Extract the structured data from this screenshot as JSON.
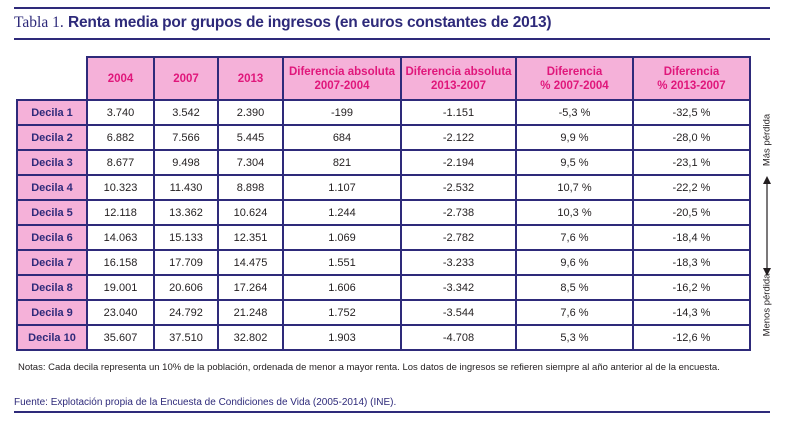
{
  "title": {
    "prefix": "Tabla 1.",
    "main": "Renta media por grupos de ingresos (en euros constantes de 2013)"
  },
  "table": {
    "columns": [
      {
        "line1": "2004",
        "line2": ""
      },
      {
        "line1": "2007",
        "line2": ""
      },
      {
        "line1": "2013",
        "line2": ""
      },
      {
        "line1": "Diferencia absoluta",
        "line2": "2007-2004"
      },
      {
        "line1": "Diferencia absoluta",
        "line2": "2013-2007"
      },
      {
        "line1": "Diferencia",
        "line2": "% 2007-2004"
      },
      {
        "line1": "Diferencia",
        "line2": "% 2013-2007"
      }
    ],
    "rows": [
      {
        "label": "Decila 1",
        "values": [
          "3.740",
          "3.542",
          "2.390",
          "-199",
          "-1.151",
          "-5,3 %",
          "-32,5 %"
        ]
      },
      {
        "label": "Decila 2",
        "values": [
          "6.882",
          "7.566",
          "5.445",
          "684",
          "-2.122",
          "9,9 %",
          "-28,0 %"
        ]
      },
      {
        "label": "Decila 3",
        "values": [
          "8.677",
          "9.498",
          "7.304",
          "821",
          "-2.194",
          "9,5 %",
          "-23,1  %"
        ]
      },
      {
        "label": "Decila 4",
        "values": [
          "10.323",
          "11.430",
          "8.898",
          "1.107",
          "-2.532",
          "10,7 %",
          "-22,2 %"
        ]
      },
      {
        "label": "Decila 5",
        "values": [
          "12.118",
          "13.362",
          "10.624",
          "1.244",
          "-2.738",
          "10,3 %",
          "-20,5 %"
        ]
      },
      {
        "label": "Decila 6",
        "values": [
          "14.063",
          "15.133",
          "12.351",
          "1.069",
          "-2.782",
          "7,6 %",
          "-18,4 %"
        ]
      },
      {
        "label": "Decila 7",
        "values": [
          "16.158",
          "17.709",
          "14.475",
          "1.551",
          "-3.233",
          "9,6 %",
          "-18,3 %"
        ]
      },
      {
        "label": "Decila 8",
        "values": [
          "19.001",
          "20.606",
          "17.264",
          "1.606",
          "-3.342",
          "8,5 %",
          "-16,2 %"
        ]
      },
      {
        "label": "Decila 9",
        "values": [
          "23.040",
          "24.792",
          "21.248",
          "1.752",
          "-3.544",
          "7,6 %",
          "-14,3 %"
        ]
      },
      {
        "label": "Decila 10",
        "values": [
          "35.607",
          "37.510",
          "32.802",
          "1.903",
          "-4.708",
          "5,3 %",
          "-12,6 %"
        ]
      }
    ]
  },
  "side_indicator": {
    "top_label": "Más pérdida",
    "bottom_label": "Menos pérdida",
    "icon": "double-arrow-vertical"
  },
  "notes": "Notas: Cada decila representa un 10% de la población, ordenada de menor a mayor renta. Los datos de ingresos se refieren siempre al año anterior al de la encuesta.",
  "source": "Fuente: Explotación propia de la Encuesta de Condiciones de Vida (2005-2014) (INE).",
  "colors": {
    "rule": "#2e2a7a",
    "header_bg": "#f5b1d9",
    "header_text": "#e0177b",
    "row_label_text": "#2e2a7a"
  }
}
